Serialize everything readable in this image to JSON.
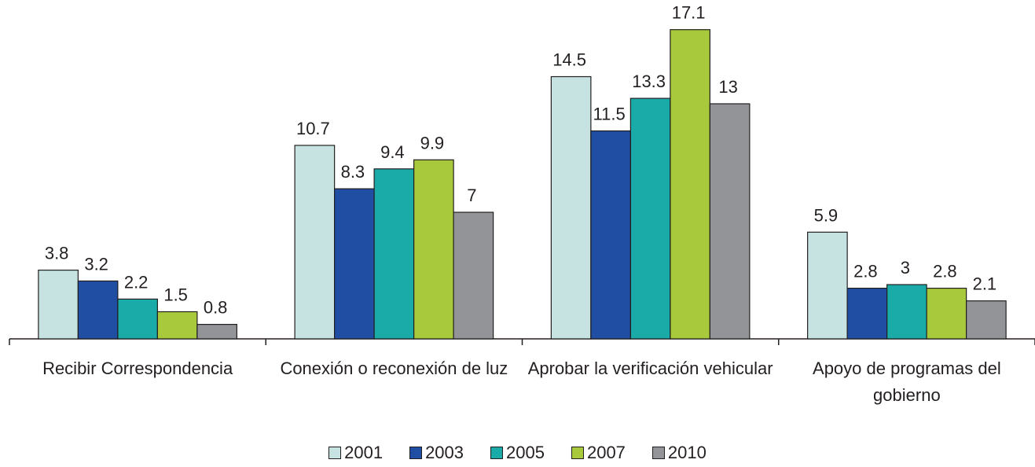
{
  "chart_data": {
    "type": "bar",
    "categories": [
      "Recibir Correspondencia",
      "Conexión o reconexión de luz",
      "Aprobar la verificación vehicular",
      "Apoyo de programas del gobierno"
    ],
    "series": [
      {
        "name": "2001",
        "color": "#c6e3e1",
        "values": [
          3.8,
          10.7,
          14.5,
          5.9
        ]
      },
      {
        "name": "2003",
        "color": "#1f4ea3",
        "values": [
          3.2,
          8.3,
          11.5,
          2.8
        ]
      },
      {
        "name": "2005",
        "color": "#1aaba8",
        "values": [
          2.2,
          9.4,
          13.3,
          3
        ]
      },
      {
        "name": "2007",
        "color": "#a8c93c",
        "values": [
          1.5,
          9.9,
          17.1,
          2.8
        ]
      },
      {
        "name": "2010",
        "color": "#929497",
        "values": [
          0.8,
          7,
          13,
          2.1
        ]
      }
    ],
    "legend": "bottom"
  }
}
